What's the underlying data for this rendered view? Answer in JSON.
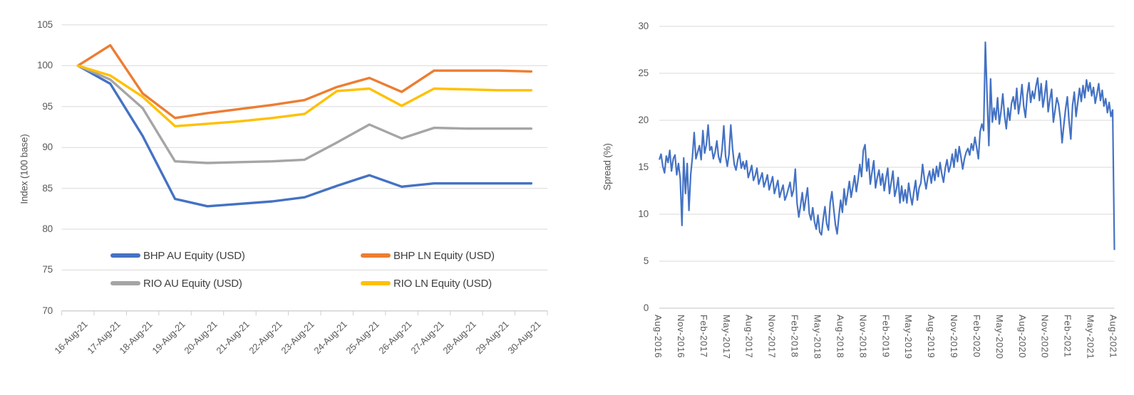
{
  "colors": {
    "blue": "#4472C4",
    "orange": "#ED7D31",
    "gray": "#A5A5A5",
    "yellow": "#FFC000",
    "gridline": "#D9D9D9",
    "axis_line": "#D0CECE",
    "tick_text": "#595959",
    "legend_text": "#404040"
  },
  "chart_data": [
    {
      "type": "line",
      "title": "",
      "xlabel": "",
      "ylabel": "Index (100 base)",
      "ylim": [
        70,
        105
      ],
      "yticks": [
        70,
        75,
        80,
        85,
        90,
        95,
        100,
        105
      ],
      "grid": true,
      "legend_position": "inside-bottom",
      "categories": [
        "16-Aug-21",
        "17-Aug-21",
        "18-Aug-21",
        "19-Aug-21",
        "20-Aug-21",
        "21-Aug-21",
        "22-Aug-21",
        "23-Aug-21",
        "24-Aug-21",
        "25-Aug-21",
        "26-Aug-21",
        "27-Aug-21",
        "28-Aug-21",
        "29-Aug-21",
        "30-Aug-21"
      ],
      "series": [
        {
          "name": "BHP AU Equity (USD)",
          "color": "#4472C4",
          "values": [
            100,
            97.8,
            91.4,
            83.7,
            82.8,
            83.1,
            83.4,
            83.9,
            85.3,
            86.6,
            85.2,
            85.6,
            85.6,
            85.6,
            85.6
          ]
        },
        {
          "name": "BHP LN Equity (USD)",
          "color": "#ED7D31",
          "values": [
            100,
            102.5,
            96.6,
            93.6,
            94.2,
            94.7,
            95.2,
            95.8,
            97.4,
            98.5,
            96.8,
            99.4,
            99.4,
            99.4,
            99.3
          ]
        },
        {
          "name": "RIO AU Equity (USD)",
          "color": "#A5A5A5",
          "values": [
            100,
            98.3,
            94.8,
            88.3,
            88.1,
            88.2,
            88.3,
            88.5,
            90.6,
            92.8,
            91.1,
            92.4,
            92.3,
            92.3,
            92.3
          ]
        },
        {
          "name": "RIO LN Equity (USD)",
          "color": "#FFC000",
          "values": [
            100,
            98.8,
            96.2,
            92.6,
            92.9,
            93.2,
            93.6,
            94.1,
            96.9,
            97.2,
            95.1,
            97.2,
            97.1,
            97.0,
            97.0
          ]
        }
      ]
    },
    {
      "type": "line",
      "title": "",
      "xlabel": "",
      "ylabel": "Spread (%)",
      "ylim": [
        0,
        30
      ],
      "yticks": [
        0,
        5,
        10,
        15,
        20,
        25,
        30
      ],
      "grid": true,
      "legend_position": "none",
      "xtick_labels": [
        "Aug-2016",
        "Nov-2016",
        "Feb-2017",
        "May-2017",
        "Aug-2017",
        "Nov-2017",
        "Feb-2018",
        "May-2018",
        "Aug-2018",
        "Nov-2018",
        "Feb-2019",
        "May-2019",
        "Aug-2019",
        "Nov-2019",
        "Feb-2020",
        "May-2020",
        "Aug-2020",
        "Nov-2020",
        "Feb-2021",
        "May-2021",
        "Aug-2021"
      ],
      "series": [
        {
          "name": "Spread",
          "color": "#4472C4",
          "values": [
            15.8,
            16.4,
            15.1,
            14.4,
            16.2,
            15.5,
            16.8,
            14.6,
            15.9,
            16.3,
            14.2,
            15.4,
            13.8,
            8.8,
            16.0,
            12.2,
            15.4,
            10.4,
            14.2,
            16.1,
            18.7,
            15.9,
            16.6,
            17.3,
            15.8,
            18.9,
            16.5,
            17.4,
            19.5,
            16.8,
            17.2,
            15.9,
            16.6,
            17.8,
            16.1,
            15.5,
            16.9,
            19.4,
            16.2,
            15.1,
            16.4,
            19.5,
            17.0,
            15.3,
            14.7,
            15.8,
            16.5,
            14.9,
            15.6,
            14.8,
            15.7,
            13.9,
            14.5,
            15.2,
            13.6,
            14.1,
            14.9,
            13.2,
            13.8,
            14.4,
            12.9,
            13.5,
            14.2,
            12.6,
            13.3,
            14.0,
            12.2,
            12.9,
            13.6,
            11.8,
            12.5,
            13.1,
            11.5,
            12.0,
            12.7,
            13.4,
            11.9,
            12.6,
            14.8,
            11.2,
            9.7,
            10.9,
            12.3,
            10.4,
            11.6,
            12.8,
            10.1,
            9.4,
            10.7,
            9.2,
            8.4,
            9.9,
            8.1,
            7.8,
            9.5,
            10.8,
            9.0,
            8.3,
            11.2,
            12.4,
            10.6,
            8.9,
            7.9,
            9.8,
            11.5,
            10.2,
            12.7,
            11.0,
            12.2,
            13.5,
            11.8,
            12.9,
            14.1,
            12.4,
            13.7,
            15.3,
            14.0,
            16.8,
            17.4,
            14.6,
            15.9,
            13.2,
            14.5,
            15.7,
            12.8,
            13.9,
            14.7,
            13.1,
            14.3,
            12.5,
            13.8,
            14.9,
            12.2,
            13.4,
            14.6,
            11.9,
            12.7,
            13.9,
            11.2,
            13.0,
            11.4,
            12.6,
            11.2,
            13.3,
            12.0,
            11.0,
            12.4,
            13.6,
            11.5,
            12.8,
            13.3,
            15.3,
            13.8,
            12.7,
            13.9,
            14.6,
            13.3,
            14.8,
            13.6,
            15.1,
            14.0,
            15.5,
            14.3,
            13.4,
            14.9,
            15.8,
            14.5,
            15.2,
            16.4,
            15.0,
            16.9,
            15.6,
            17.2,
            16.1,
            14.8,
            15.9,
            16.6,
            17.0,
            16.3,
            17.5,
            16.8,
            18.2,
            17.1,
            15.9,
            18.8,
            19.6,
            18.9,
            28.3,
            22.5,
            17.3,
            24.4,
            19.8,
            21.3,
            20.1,
            22.4,
            19.6,
            21.0,
            22.8,
            20.5,
            19.1,
            21.3,
            20.0,
            21.8,
            22.5,
            21.2,
            23.4,
            20.7,
            22.0,
            23.8,
            21.5,
            20.3,
            22.7,
            24.0,
            21.9,
            23.1,
            22.3,
            23.6,
            24.5,
            22.1,
            23.9,
            21.4,
            22.6,
            24.2,
            20.9,
            22.2,
            23.3,
            19.8,
            21.1,
            22.4,
            21.7,
            20.2,
            17.6,
            19.5,
            21.2,
            22.5,
            19.9,
            18.0,
            21.6,
            23.0,
            20.4,
            21.9,
            23.4,
            22.0,
            23.7,
            22.4,
            24.3,
            23.1,
            24.0,
            22.6,
            23.5,
            21.8,
            22.8,
            23.9,
            22.1,
            23.2,
            21.5,
            22.3,
            20.8,
            21.9,
            20.4,
            21.1,
            6.2
          ]
        }
      ]
    }
  ]
}
